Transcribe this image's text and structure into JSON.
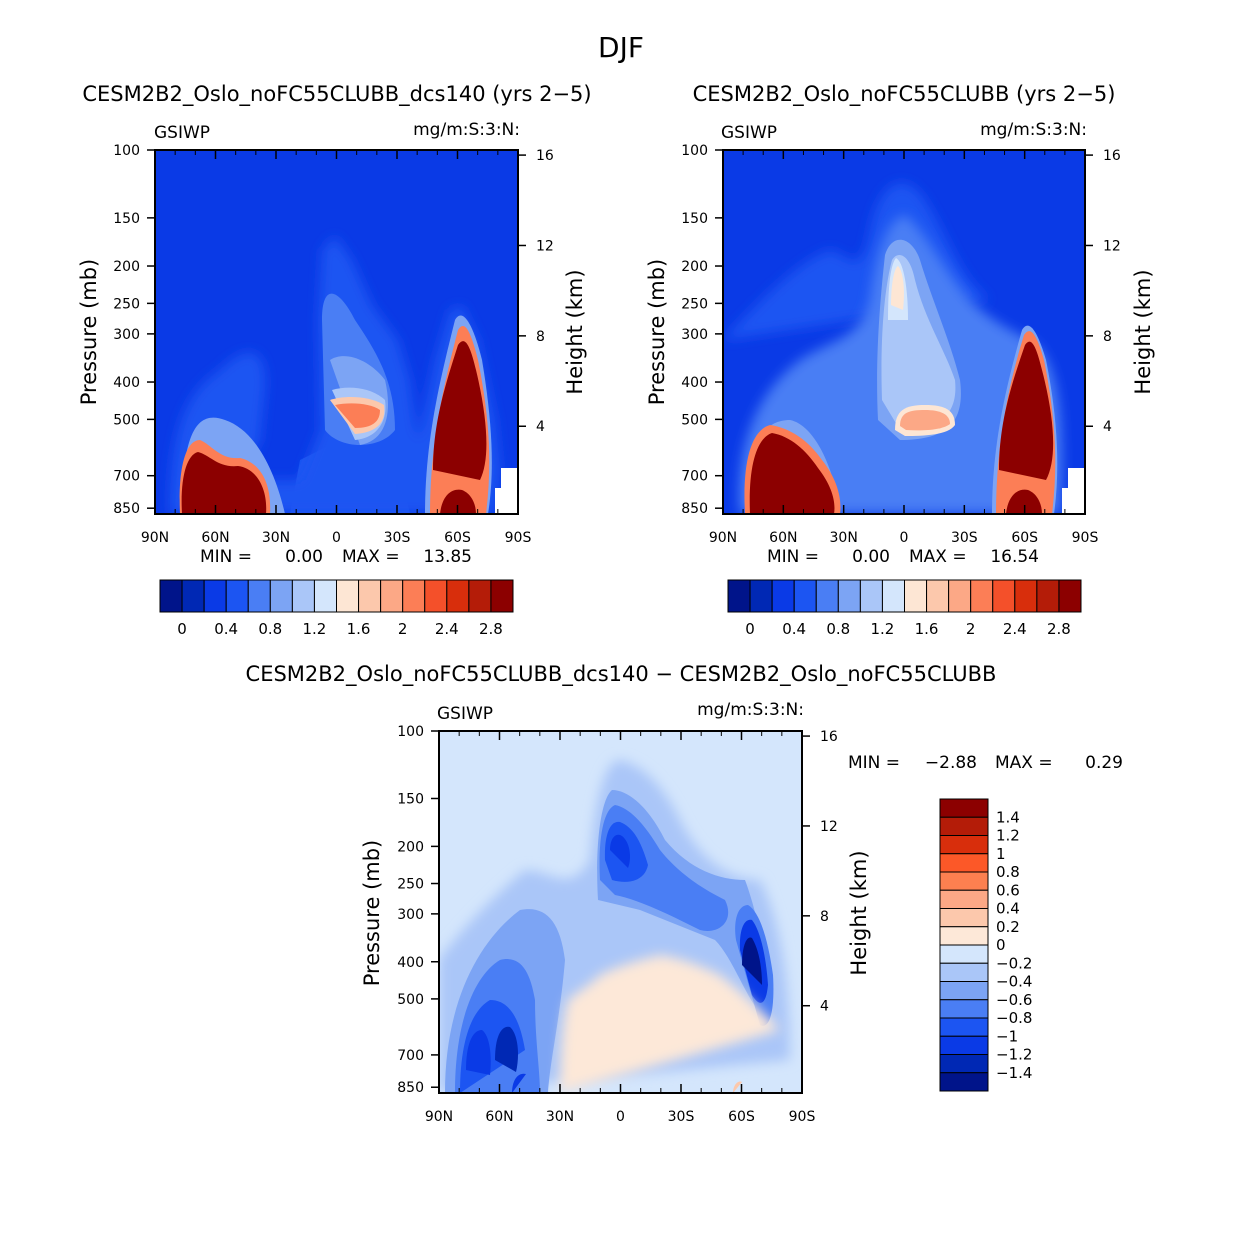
{
  "figure_title": "DJF",
  "chart_data": [
    {
      "type": "heatmap",
      "title": "CESM2B2_Oslo_noFC55CLUBB_dcs140 (yrs 2−5)",
      "variable": "GSIWP",
      "units_label": "mg/m:S:3:N:",
      "ylabel": "Pressure (mb)",
      "ylabel_right": "Height (km)",
      "x_ticks": [
        "90N",
        "60N",
        "30N",
        "0",
        "30S",
        "60S",
        "90S"
      ],
      "y_ticks": [
        "100",
        "150",
        "200",
        "250",
        "300",
        "400",
        "500",
        "700",
        "850"
      ],
      "y_right_ticks": [
        "16",
        "12",
        "8",
        "4"
      ],
      "min_label": "MIN =",
      "min_value": "0.00",
      "max_label": "MAX =",
      "max_value": "13.85",
      "colorbar_labels": [
        "0",
        "0.4",
        "0.8",
        "1.2",
        "1.6",
        "2",
        "2.4",
        "2.8"
      ]
    },
    {
      "type": "heatmap",
      "title": "CESM2B2_Oslo_noFC55CLUBB (yrs 2−5)",
      "variable": "GSIWP",
      "units_label": "mg/m:S:3:N:",
      "ylabel": "Pressure (mb)",
      "ylabel_right": "Height (km)",
      "x_ticks": [
        "90N",
        "60N",
        "30N",
        "0",
        "30S",
        "60S",
        "90S"
      ],
      "y_ticks": [
        "100",
        "150",
        "200",
        "250",
        "300",
        "400",
        "500",
        "700",
        "850"
      ],
      "y_right_ticks": [
        "16",
        "12",
        "8",
        "4"
      ],
      "min_label": "MIN =",
      "min_value": "0.00",
      "max_label": "MAX =",
      "max_value": "16.54",
      "colorbar_labels": [
        "0",
        "0.4",
        "0.8",
        "1.2",
        "1.6",
        "2",
        "2.4",
        "2.8"
      ]
    },
    {
      "type": "heatmap",
      "title": "CESM2B2_Oslo_noFC55CLUBB_dcs140 − CESM2B2_Oslo_noFC55CLUBB",
      "variable": "GSIWP",
      "units_label": "mg/m:S:3:N:",
      "ylabel": "Pressure (mb)",
      "ylabel_right": "Height (km)",
      "x_ticks": [
        "90N",
        "60N",
        "30N",
        "0",
        "30S",
        "60S",
        "90S"
      ],
      "y_ticks": [
        "100",
        "150",
        "200",
        "250",
        "300",
        "400",
        "500",
        "700",
        "850"
      ],
      "y_right_ticks": [
        "16",
        "12",
        "8",
        "4"
      ],
      "min_label": "MIN =",
      "min_value": "−2.88",
      "max_label": "MAX =",
      "max_value": "0.29",
      "colorbar_labels": [
        "1.4",
        "1.2",
        "1",
        "0.8",
        "0.6",
        "0.4",
        "0.2",
        "0",
        "−0.2",
        "−0.4",
        "−0.6",
        "−0.8",
        "−1",
        "−1.2",
        "−1.4"
      ]
    }
  ],
  "colors": {
    "seq": [
      "#00148a",
      "#0028b4",
      "#0a3ae6",
      "#1c55f2",
      "#4a7ef4",
      "#7ca4f4",
      "#aac6f8",
      "#d4e6fc",
      "#fde6d4",
      "#fcc8ac",
      "#fca886",
      "#fc7e56",
      "#f4502a",
      "#d82e0c",
      "#b41c08",
      "#8c0000"
    ],
    "diff": [
      "#8c0000",
      "#b41c08",
      "#d82e0c",
      "#fc5828",
      "#fc8050",
      "#fca886",
      "#fcc8ac",
      "#fde8d8",
      "#d4e6fc",
      "#aac6f8",
      "#7ca4f4",
      "#4a7ef4",
      "#1c55f2",
      "#0a3ae6",
      "#0028b4",
      "#00148a"
    ]
  }
}
